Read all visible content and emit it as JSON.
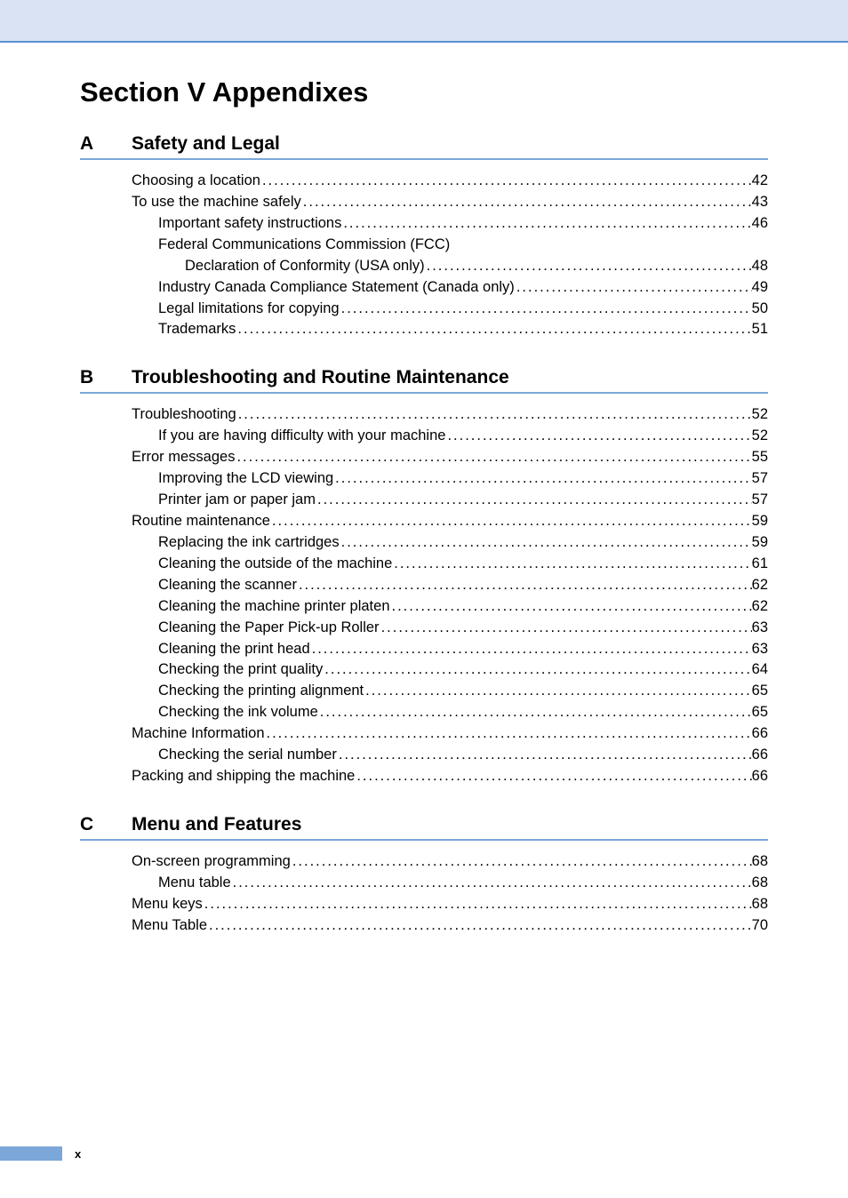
{
  "colors": {
    "top_band_bg": "#d9e3f3",
    "top_band_border": "#5b8fd1",
    "section_rule": "#7ba7d9",
    "footer_bar": "#7ba7d9",
    "text": "#000000",
    "page_bg": "#ffffff"
  },
  "typography": {
    "main_title_fontsize": 31,
    "section_letter_fontsize": 21,
    "section_title_fontsize": 21,
    "toc_entry_fontsize": 16.5,
    "footer_fontsize": 13
  },
  "main_title": "Section V  Appendixes",
  "footer_page": "x",
  "sections": [
    {
      "letter": "A",
      "title": "Safety and Legal",
      "entries": [
        {
          "label": "Choosing a location",
          "page": "42",
          "indent": 0,
          "dots": true
        },
        {
          "label": "To use the machine safely",
          "page": "43",
          "indent": 0,
          "dots": true
        },
        {
          "label": "Important safety instructions",
          "page": "46",
          "indent": 1,
          "dots": true
        },
        {
          "label": "Federal Communications Commission (FCC)",
          "page": "",
          "indent": 1,
          "dots": false
        },
        {
          "label": "Declaration of Conformity (USA only)",
          "page": "48",
          "indent": 2,
          "dots": true
        },
        {
          "label": "Industry Canada Compliance Statement (Canada only)",
          "page": "49",
          "indent": 1,
          "dots": true
        },
        {
          "label": "Legal limitations for copying",
          "page": "50",
          "indent": 1,
          "dots": true
        },
        {
          "label": "Trademarks",
          "page": "51",
          "indent": 1,
          "dots": true
        }
      ]
    },
    {
      "letter": "B",
      "title": "Troubleshooting and Routine Maintenance",
      "entries": [
        {
          "label": "Troubleshooting",
          "page": "52",
          "indent": 0,
          "dots": true
        },
        {
          "label": "If you are having difficulty with your machine",
          "page": "52",
          "indent": 1,
          "dots": true
        },
        {
          "label": "Error messages",
          "page": "55",
          "indent": 0,
          "dots": true
        },
        {
          "label": "Improving the LCD viewing",
          "page": "57",
          "indent": 1,
          "dots": true
        },
        {
          "label": "Printer jam or paper jam",
          "page": "57",
          "indent": 1,
          "dots": true
        },
        {
          "label": "Routine maintenance",
          "page": "59",
          "indent": 0,
          "dots": true
        },
        {
          "label": "Replacing the ink cartridges",
          "page": "59",
          "indent": 1,
          "dots": true
        },
        {
          "label": "Cleaning the outside of the machine",
          "page": "61",
          "indent": 1,
          "dots": true
        },
        {
          "label": "Cleaning the scanner",
          "page": "62",
          "indent": 1,
          "dots": true
        },
        {
          "label": "Cleaning the machine printer platen",
          "page": "62",
          "indent": 1,
          "dots": true
        },
        {
          "label": "Cleaning the Paper Pick-up Roller",
          "page": "63",
          "indent": 1,
          "dots": true
        },
        {
          "label": "Cleaning the print head",
          "page": "63",
          "indent": 1,
          "dots": true
        },
        {
          "label": "Checking the print quality",
          "page": "64",
          "indent": 1,
          "dots": true
        },
        {
          "label": "Checking the printing alignment",
          "page": "65",
          "indent": 1,
          "dots": true
        },
        {
          "label": "Checking the ink volume",
          "page": "65",
          "indent": 1,
          "dots": true
        },
        {
          "label": "Machine Information",
          "page": "66",
          "indent": 0,
          "dots": true
        },
        {
          "label": "Checking the serial number",
          "page": "66",
          "indent": 1,
          "dots": true
        },
        {
          "label": "Packing and shipping the machine",
          "page": "66",
          "indent": 0,
          "dots": true
        }
      ]
    },
    {
      "letter": "C",
      "title": "Menu and Features",
      "entries": [
        {
          "label": "On-screen programming",
          "page": "68",
          "indent": 0,
          "dots": true
        },
        {
          "label": "Menu table",
          "page": "68",
          "indent": 1,
          "dots": true
        },
        {
          "label": "Menu keys",
          "page": "68",
          "indent": 0,
          "dots": true
        },
        {
          "label": "Menu Table",
          "page": "70",
          "indent": 0,
          "dots": true
        }
      ]
    }
  ]
}
